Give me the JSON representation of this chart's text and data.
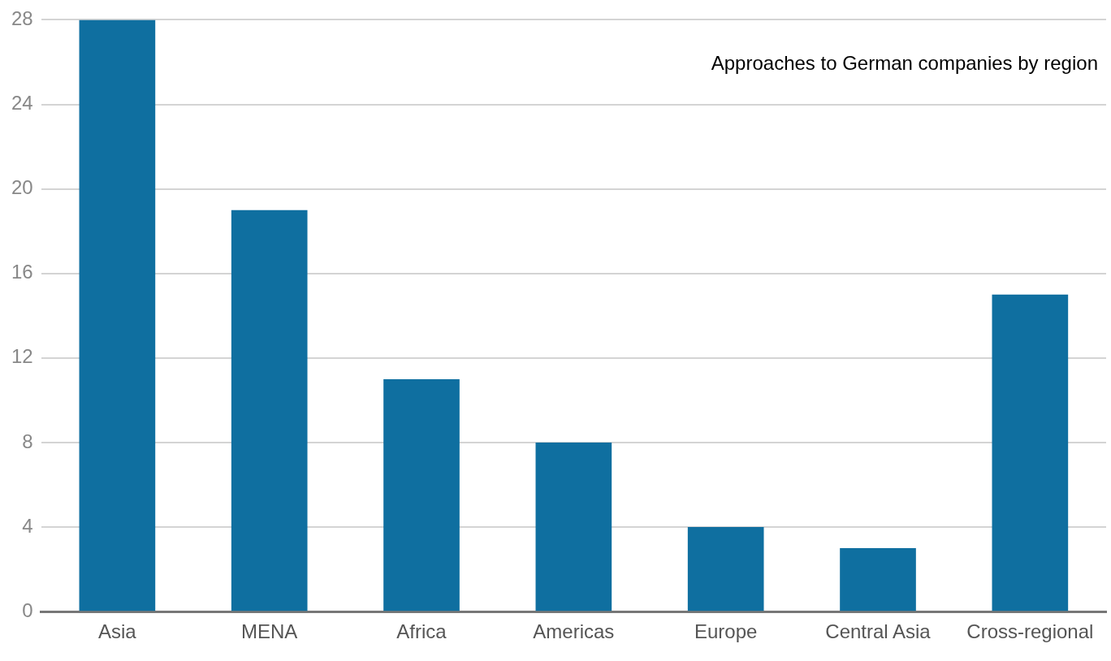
{
  "chart_data": {
    "type": "bar",
    "title": "Approaches to German companies by region",
    "categories": [
      "Asia",
      "MENA",
      "Africa",
      "Americas",
      "Europe",
      "Central Asia",
      "Cross-regional"
    ],
    "values": [
      28,
      19,
      11,
      8,
      4,
      3,
      15
    ],
    "color": "#0f6fa0",
    "ylim": [
      0,
      28
    ],
    "yticks": [
      0,
      4,
      8,
      12,
      16,
      20,
      24,
      28
    ],
    "grid": "y",
    "legend": false
  }
}
